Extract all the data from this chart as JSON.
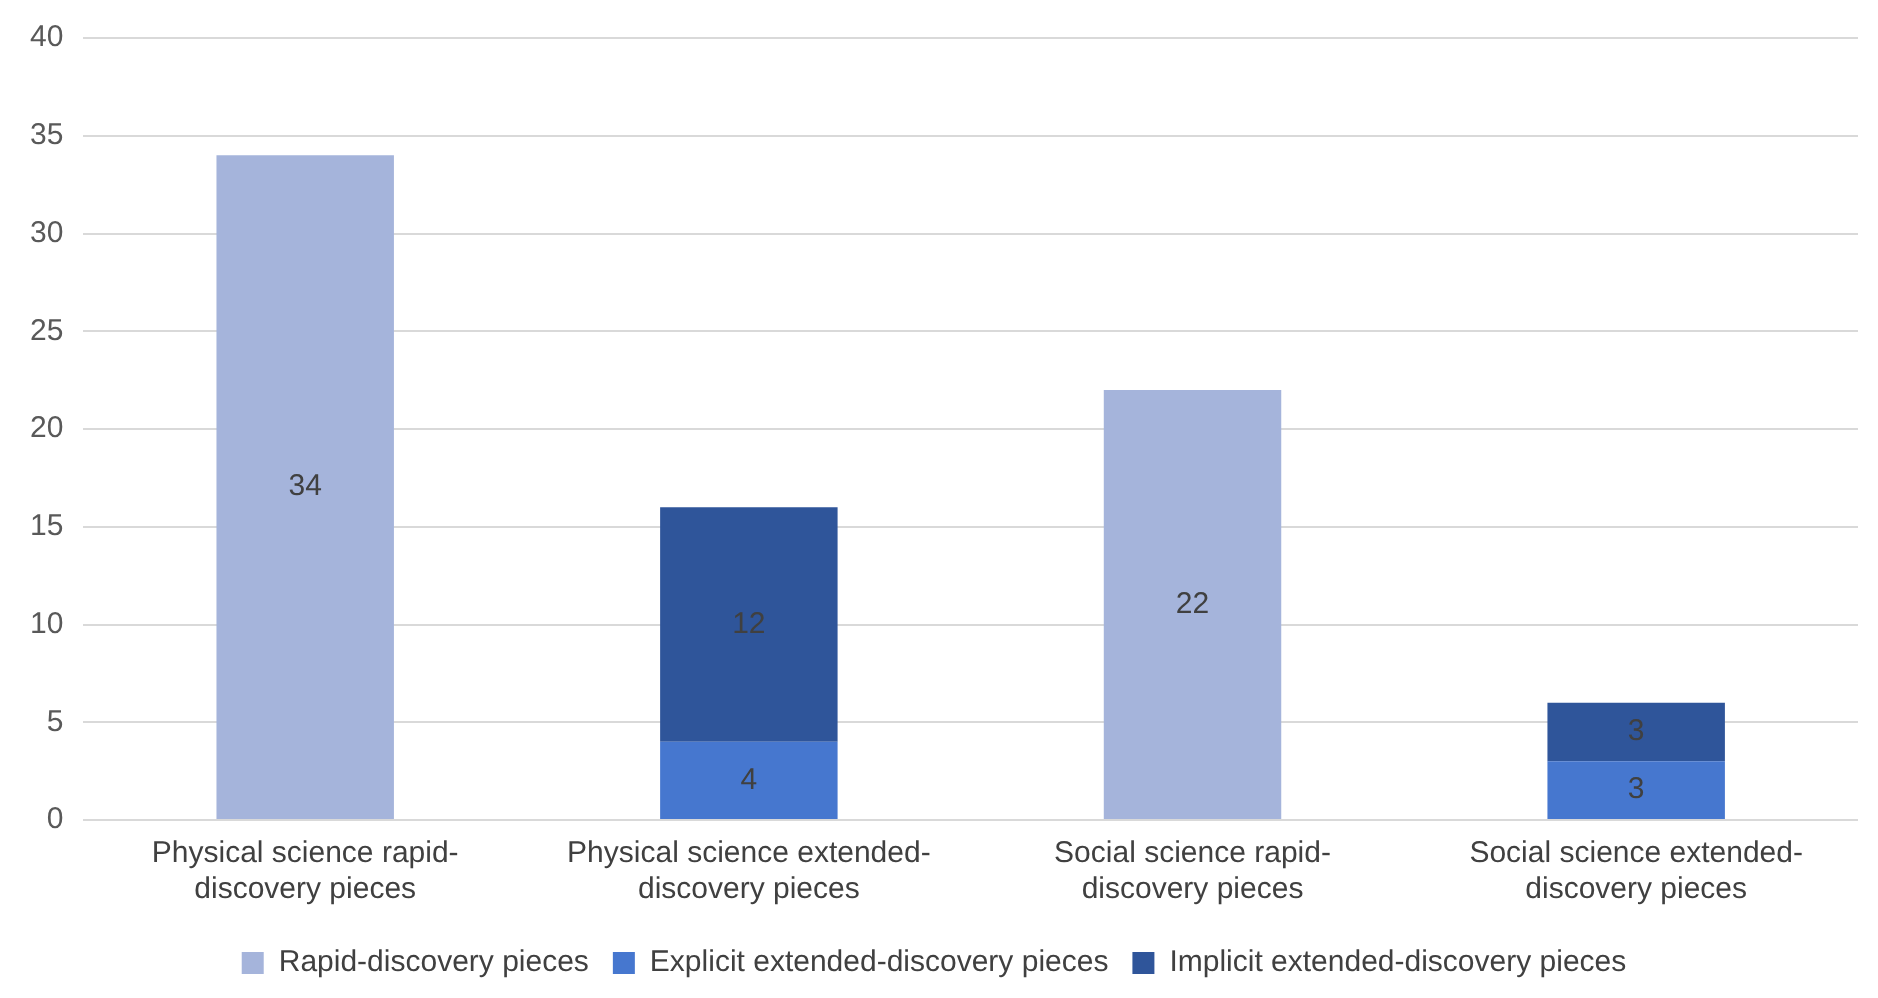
{
  "chart_data": {
    "type": "bar",
    "stacked": true,
    "categories": [
      "Physical science rapid-discovery pieces",
      "Physical science extended-discovery pieces",
      "Social science rapid-discovery pieces",
      "Social science extended-discovery pieces"
    ],
    "series": [
      {
        "name": "Rapid-discovery pieces",
        "color": "#a5b4db",
        "values": [
          34,
          null,
          22,
          null
        ]
      },
      {
        "name": "Explicit extended-discovery pieces",
        "color": "#4677cf",
        "values": [
          null,
          4,
          null,
          3
        ]
      },
      {
        "name": "Implicit extended-discovery pieces",
        "color": "#2f559a",
        "values": [
          null,
          12,
          null,
          3
        ]
      }
    ],
    "ylim": [
      0,
      40
    ],
    "yticks": [
      0,
      5,
      10,
      15,
      20,
      25,
      30,
      35,
      40
    ],
    "grid": "y",
    "legend": "bottom",
    "data_labels": true
  }
}
